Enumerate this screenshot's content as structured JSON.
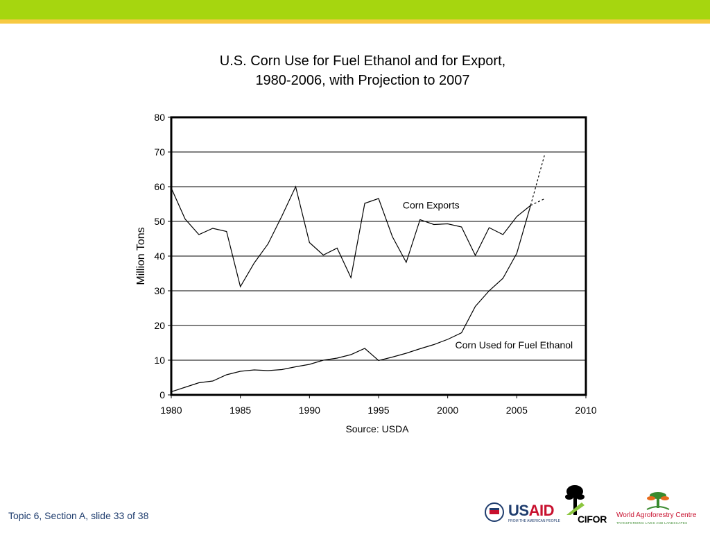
{
  "slide": {
    "footer": "Topic 6, Section A, slide 33 of 38",
    "colors": {
      "band_green": "#a6d60f",
      "band_yellow": "#f7c942"
    },
    "logos": {
      "usaid": "USAID",
      "usaid_tagline": "FROM THE AMERICAN PEOPLE",
      "cifor": "CIFOR",
      "wac": "World Agroforestry Centre",
      "wac_tagline": "TRANSFORMING LIVES AND LANDSCAPES"
    }
  },
  "chart_data": {
    "type": "line",
    "title_line1": "U.S. Corn Use for Fuel Ethanol and for Export,",
    "title_line2": "1980-2006, with Projection to 2007",
    "xlabel": "Source: USDA",
    "ylabel": "Million Tons",
    "xlim": [
      1980,
      2010
    ],
    "ylim": [
      0,
      80
    ],
    "x_ticks": [
      1980,
      1985,
      1990,
      1995,
      2000,
      2005,
      2010
    ],
    "y_ticks": [
      0,
      10,
      20,
      30,
      40,
      50,
      60,
      70,
      80
    ],
    "grid": "horizontal",
    "series": [
      {
        "name": "Corn Exports",
        "x": [
          1980,
          1981,
          1982,
          1983,
          1984,
          1985,
          1986,
          1987,
          1988,
          1989,
          1990,
          1991,
          1992,
          1993,
          1994,
          1995,
          1996,
          1997,
          1998,
          1999,
          2000,
          2001,
          2002,
          2003,
          2004,
          2005,
          2006
        ],
        "values": [
          59.6,
          50.7,
          46.2,
          48.0,
          47.1,
          31.2,
          38.0,
          43.5,
          51.5,
          60.0,
          43.9,
          40.3,
          42.3,
          33.8,
          55.2,
          56.6,
          45.6,
          38.2,
          50.5,
          49.1,
          49.3,
          48.4,
          40.2,
          48.2,
          46.2,
          51.4,
          54.6
        ],
        "projection": {
          "x": [
            2006,
            2007
          ],
          "values": [
            54.6,
            56.5
          ]
        },
        "label_at": [
          1998.8,
          53.7
        ]
      },
      {
        "name": "Corn Used for Fuel Ethanol",
        "x": [
          1980,
          1981,
          1982,
          1983,
          1984,
          1985,
          1986,
          1987,
          1988,
          1989,
          1990,
          1991,
          1992,
          1993,
          1994,
          1995,
          1996,
          1997,
          1998,
          1999,
          2000,
          2001,
          2002,
          2003,
          2004,
          2005,
          2006
        ],
        "values": [
          0.9,
          2.2,
          3.5,
          4.0,
          5.8,
          6.8,
          7.2,
          7.0,
          7.3,
          8.1,
          8.8,
          10.0,
          10.6,
          11.6,
          13.4,
          9.9,
          10.9,
          12.0,
          13.3,
          14.5,
          16.0,
          17.9,
          25.5,
          30.0,
          33.6,
          40.8,
          54.6
        ],
        "projection": {
          "x": [
            2006,
            2007
          ],
          "values": [
            54.6,
            69.0
          ]
        },
        "label_at": [
          2004.8,
          13.4
        ]
      }
    ]
  }
}
